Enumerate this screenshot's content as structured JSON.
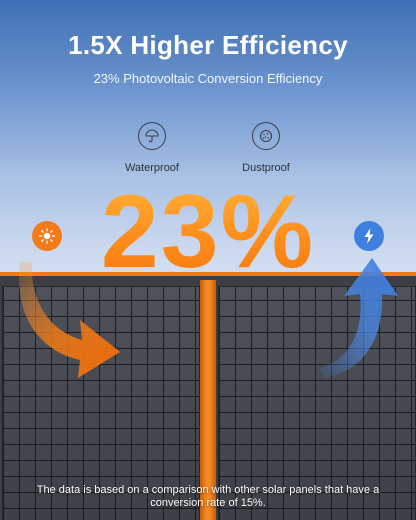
{
  "heading": {
    "title": "1.5X Higher Efficiency",
    "subtitle": "23% Photovoltaic Conversion Efficiency"
  },
  "features": [
    {
      "label": "Waterproof",
      "icon": "umbrella-rain-icon"
    },
    {
      "label": "Dustproof",
      "icon": "dust-icon"
    }
  ],
  "highlight": {
    "value": "23%"
  },
  "badges": {
    "left": {
      "icon": "sun-icon",
      "color": "#f47a1a"
    },
    "right": {
      "icon": "lightning-bolt-icon",
      "color": "#3f7fe0"
    }
  },
  "colors": {
    "accent_orange": "#f07b16",
    "accent_blue": "#4a88e6",
    "panel": "#3c3e44"
  },
  "footnote": "The data is based on a comparison with other solar panels that have a conversion rate of 15%."
}
